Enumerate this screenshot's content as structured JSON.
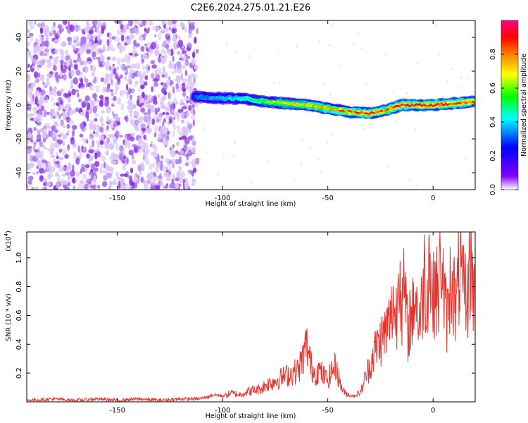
{
  "title": "C2E6.2024.275.01.21.E26",
  "colors": {
    "snr_line": "#e8332c",
    "noise_dot": "#8a2be2",
    "axis": "#000000"
  },
  "chart_data": [
    {
      "type": "heatmap",
      "xlabel": "Height of straight line (km)",
      "ylabel": "Frequency (Hz)",
      "xlim": [
        -193,
        20
      ],
      "ylim": [
        -50,
        50
      ],
      "xticks": [
        -150,
        -100,
        -50,
        0
      ],
      "xtick_labels": [
        "-150",
        "-100",
        "-50",
        "0"
      ],
      "yticks": [
        -40,
        -20,
        0,
        20,
        40
      ],
      "ytick_labels": [
        "-40",
        "-20",
        "0",
        "20",
        "40"
      ],
      "colorbar": {
        "label": "Normalized spectral amplitude",
        "range": [
          0,
          1
        ],
        "ticks": [
          0.0,
          0.2,
          0.4,
          0.6,
          0.8
        ],
        "tick_labels": [
          "0.0",
          "0.2",
          "0.4",
          "0.6",
          "0.8"
        ],
        "colormap": [
          "#ffffff",
          "#8000ff",
          "#0000ff",
          "#00ffff",
          "#00ff00",
          "#ffff00",
          "#ff8000",
          "#ff0000",
          "#ff0080"
        ]
      },
      "noise_region_x": [
        -193,
        -112
      ],
      "signal_track": {
        "x": [
          -113,
          -100,
          -90,
          -80,
          -70,
          -60,
          -50,
          -40,
          -30,
          -22,
          -15,
          -10,
          0,
          10,
          20
        ],
        "freq": [
          5,
          4,
          4,
          2,
          1,
          0,
          -2,
          -4,
          -5,
          -3,
          0,
          0,
          0,
          1,
          2
        ],
        "amplitude": [
          0.3,
          0.35,
          0.4,
          0.55,
          0.65,
          0.7,
          0.75,
          0.8,
          0.85,
          0.8,
          0.9,
          0.85,
          0.9,
          0.85,
          0.8
        ]
      }
    },
    {
      "type": "line",
      "xlabel": "Height of straight line (km)",
      "ylabel": "SNR (10 * v/v)",
      "y_multiplier": "(x10",
      "y_multiplier_exp": "4",
      "y_multiplier_close": ")",
      "xlim": [
        -193,
        20
      ],
      "ylim": [
        0,
        1.18
      ],
      "xticks": [
        -150,
        -100,
        -50,
        0
      ],
      "xtick_labels": [
        "-150",
        "-100",
        "-50",
        "0"
      ],
      "yticks": [
        0.2,
        0.4,
        0.6,
        0.8,
        1.0
      ],
      "ytick_labels": [
        "0.2",
        "0.4",
        "0.6",
        "0.8",
        "1.0"
      ],
      "series": [
        {
          "x": [
            -193,
            -180,
            -170,
            -160,
            -150,
            -140,
            -130,
            -120,
            -112,
            -108,
            -104,
            -100,
            -96,
            -92,
            -88,
            -85,
            -82,
            -79,
            -76,
            -73,
            -70,
            -67,
            -64,
            -62,
            -60,
            -58,
            -56,
            -54,
            -52,
            -50,
            -48,
            -46,
            -44,
            -42,
            -40,
            -38,
            -36,
            -34,
            -32,
            -30,
            -28,
            -26,
            -24,
            -22,
            -20,
            -19,
            -18,
            -17,
            -16,
            -15,
            -14,
            -13,
            -12,
            -11,
            -10,
            -9,
            -8,
            -7,
            -6,
            -5,
            -4,
            -3,
            -2,
            -1,
            0,
            1,
            2,
            3,
            4,
            5,
            6,
            7,
            8,
            9,
            10,
            11,
            12,
            13,
            14,
            15,
            16,
            17,
            18,
            19,
            20
          ],
          "values": [
            0.01,
            0.02,
            0.01,
            0.02,
            0.01,
            0.02,
            0.01,
            0.02,
            0.02,
            0.03,
            0.05,
            0.04,
            0.06,
            0.05,
            0.07,
            0.08,
            0.09,
            0.12,
            0.14,
            0.16,
            0.18,
            0.2,
            0.22,
            0.3,
            0.4,
            0.25,
            0.2,
            0.22,
            0.18,
            0.15,
            0.22,
            0.25,
            0.12,
            0.06,
            0.05,
            0.04,
            0.05,
            0.08,
            0.18,
            0.25,
            0.35,
            0.4,
            0.45,
            0.5,
            0.58,
            0.72,
            0.55,
            0.65,
            1.18,
            0.6,
            0.75,
            0.7,
            0.45,
            0.6,
            0.55,
            0.78,
            0.7,
            0.6,
            0.55,
            0.75,
            0.9,
            0.65,
            1.05,
            0.8,
            0.7,
            0.85,
            0.72,
            0.8,
            1.1,
            0.75,
            0.62,
            0.58,
            0.8,
            0.9,
            0.75,
            0.6,
            0.85,
            0.95,
            0.7,
            0.82,
            0.65,
            0.9,
            1.0,
            0.78,
            0.75
          ]
        }
      ]
    }
  ]
}
